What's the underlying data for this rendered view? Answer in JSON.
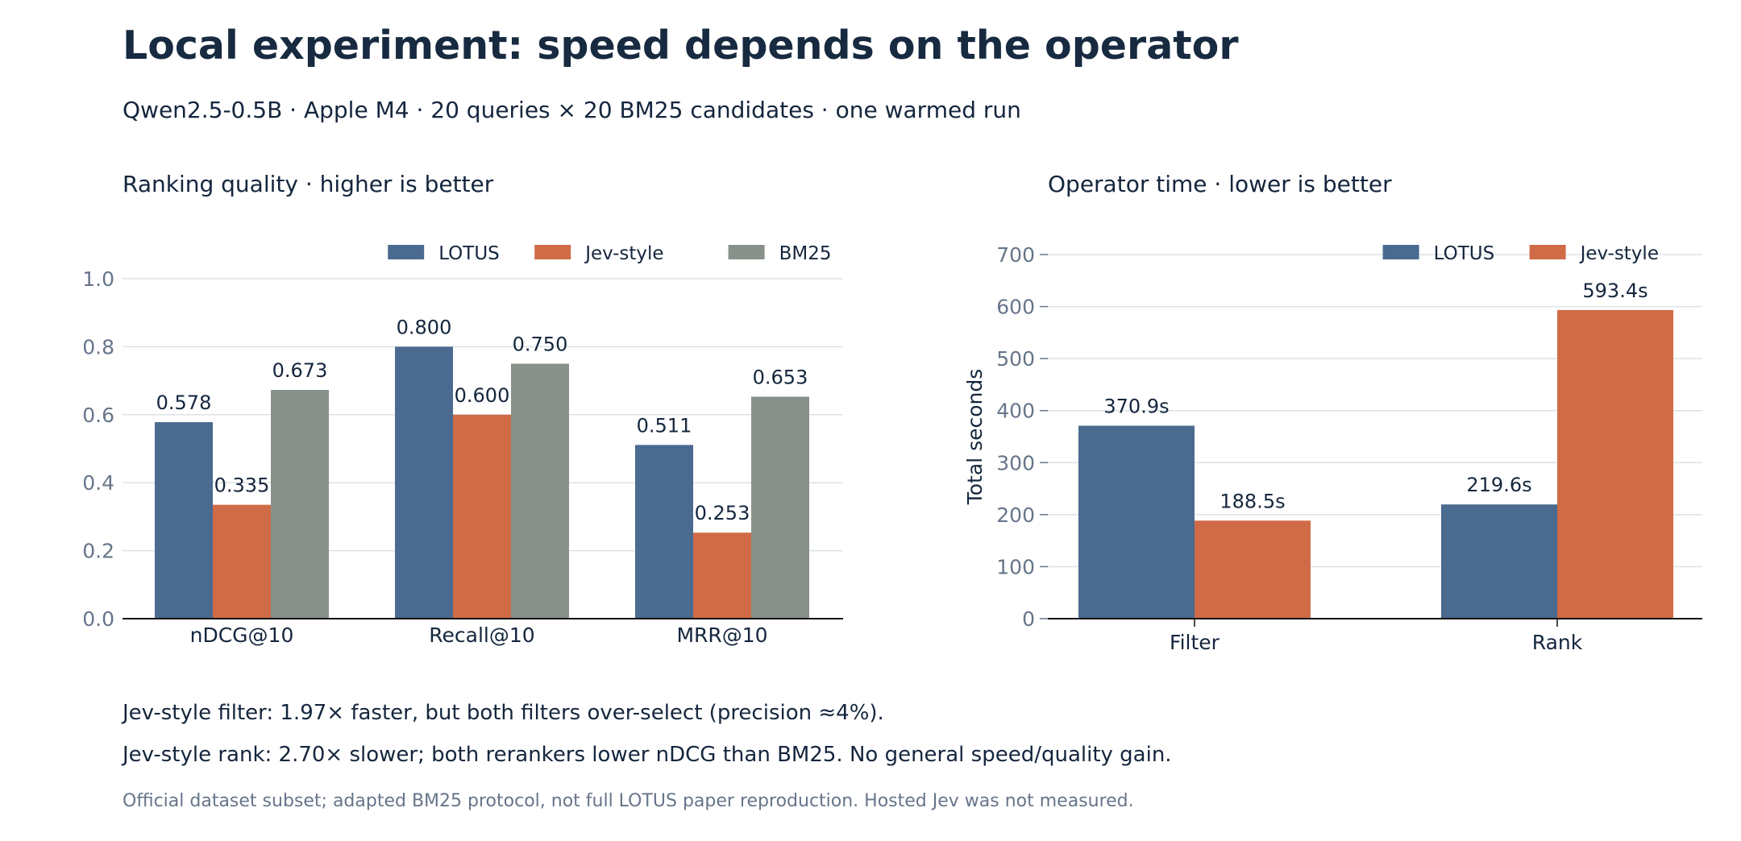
{
  "header": {
    "title": "Local experiment: speed depends on the operator",
    "subtitle": "Qwen2.5-0.5B · Apple M4 · 20 queries × 20 BM25 candidates · one warmed run"
  },
  "notes": {
    "line1": "Jev-style filter: 1.97× faster, but both filters over-select (precision ≈4%).",
    "line2": "Jev-style rank: 2.70× slower; both rerankers lower nDCG than BM25. No general speed/quality gain.",
    "footnote": "Official dataset subset; adapted BM25 protocol, not full LOTUS paper reproduction. Hosted Jev was not measured."
  },
  "colors": {
    "lotus": "#4a6a8f",
    "jev": "#d06b47",
    "bm25": "#889189",
    "axis": "#111111",
    "grid": "#dde1e6",
    "tick_label": "#66758a"
  },
  "chart_data": [
    {
      "type": "bar",
      "title": "Ranking quality · higher is better",
      "xlabel": "",
      "ylabel": "",
      "categories": [
        "nDCG@10",
        "Recall@10",
        "MRR@10"
      ],
      "series": [
        {
          "name": "LOTUS",
          "values": [
            0.578,
            0.8,
            0.511
          ],
          "labels": [
            "0.578",
            "0.800",
            "0.511"
          ]
        },
        {
          "name": "Jev-style",
          "values": [
            0.335,
            0.6,
            0.253
          ],
          "labels": [
            "0.335",
            "0.600",
            "0.253"
          ]
        },
        {
          "name": "BM25",
          "values": [
            0.673,
            0.75,
            0.653
          ],
          "labels": [
            "0.673",
            "0.750",
            "0.653"
          ]
        }
      ],
      "ylim": [
        0,
        1.0
      ],
      "yticks": [
        "0.0",
        "0.2",
        "0.4",
        "0.6",
        "0.8",
        "1.0"
      ],
      "grid": true,
      "legend": "top-right"
    },
    {
      "type": "bar",
      "title": "Operator time · lower is better",
      "xlabel": "",
      "ylabel": "Total seconds",
      "categories": [
        "Filter",
        "Rank"
      ],
      "series": [
        {
          "name": "LOTUS",
          "values": [
            370.9,
            219.6
          ],
          "labels": [
            "370.9s",
            "219.6s"
          ]
        },
        {
          "name": "Jev-style",
          "values": [
            188.5,
            593.4
          ],
          "labels": [
            "188.5s",
            "593.4s"
          ]
        }
      ],
      "ylim": [
        0,
        700
      ],
      "yticks": [
        "0",
        "100",
        "200",
        "300",
        "400",
        "500",
        "600",
        "700"
      ],
      "grid": true,
      "legend": "top-right"
    }
  ]
}
